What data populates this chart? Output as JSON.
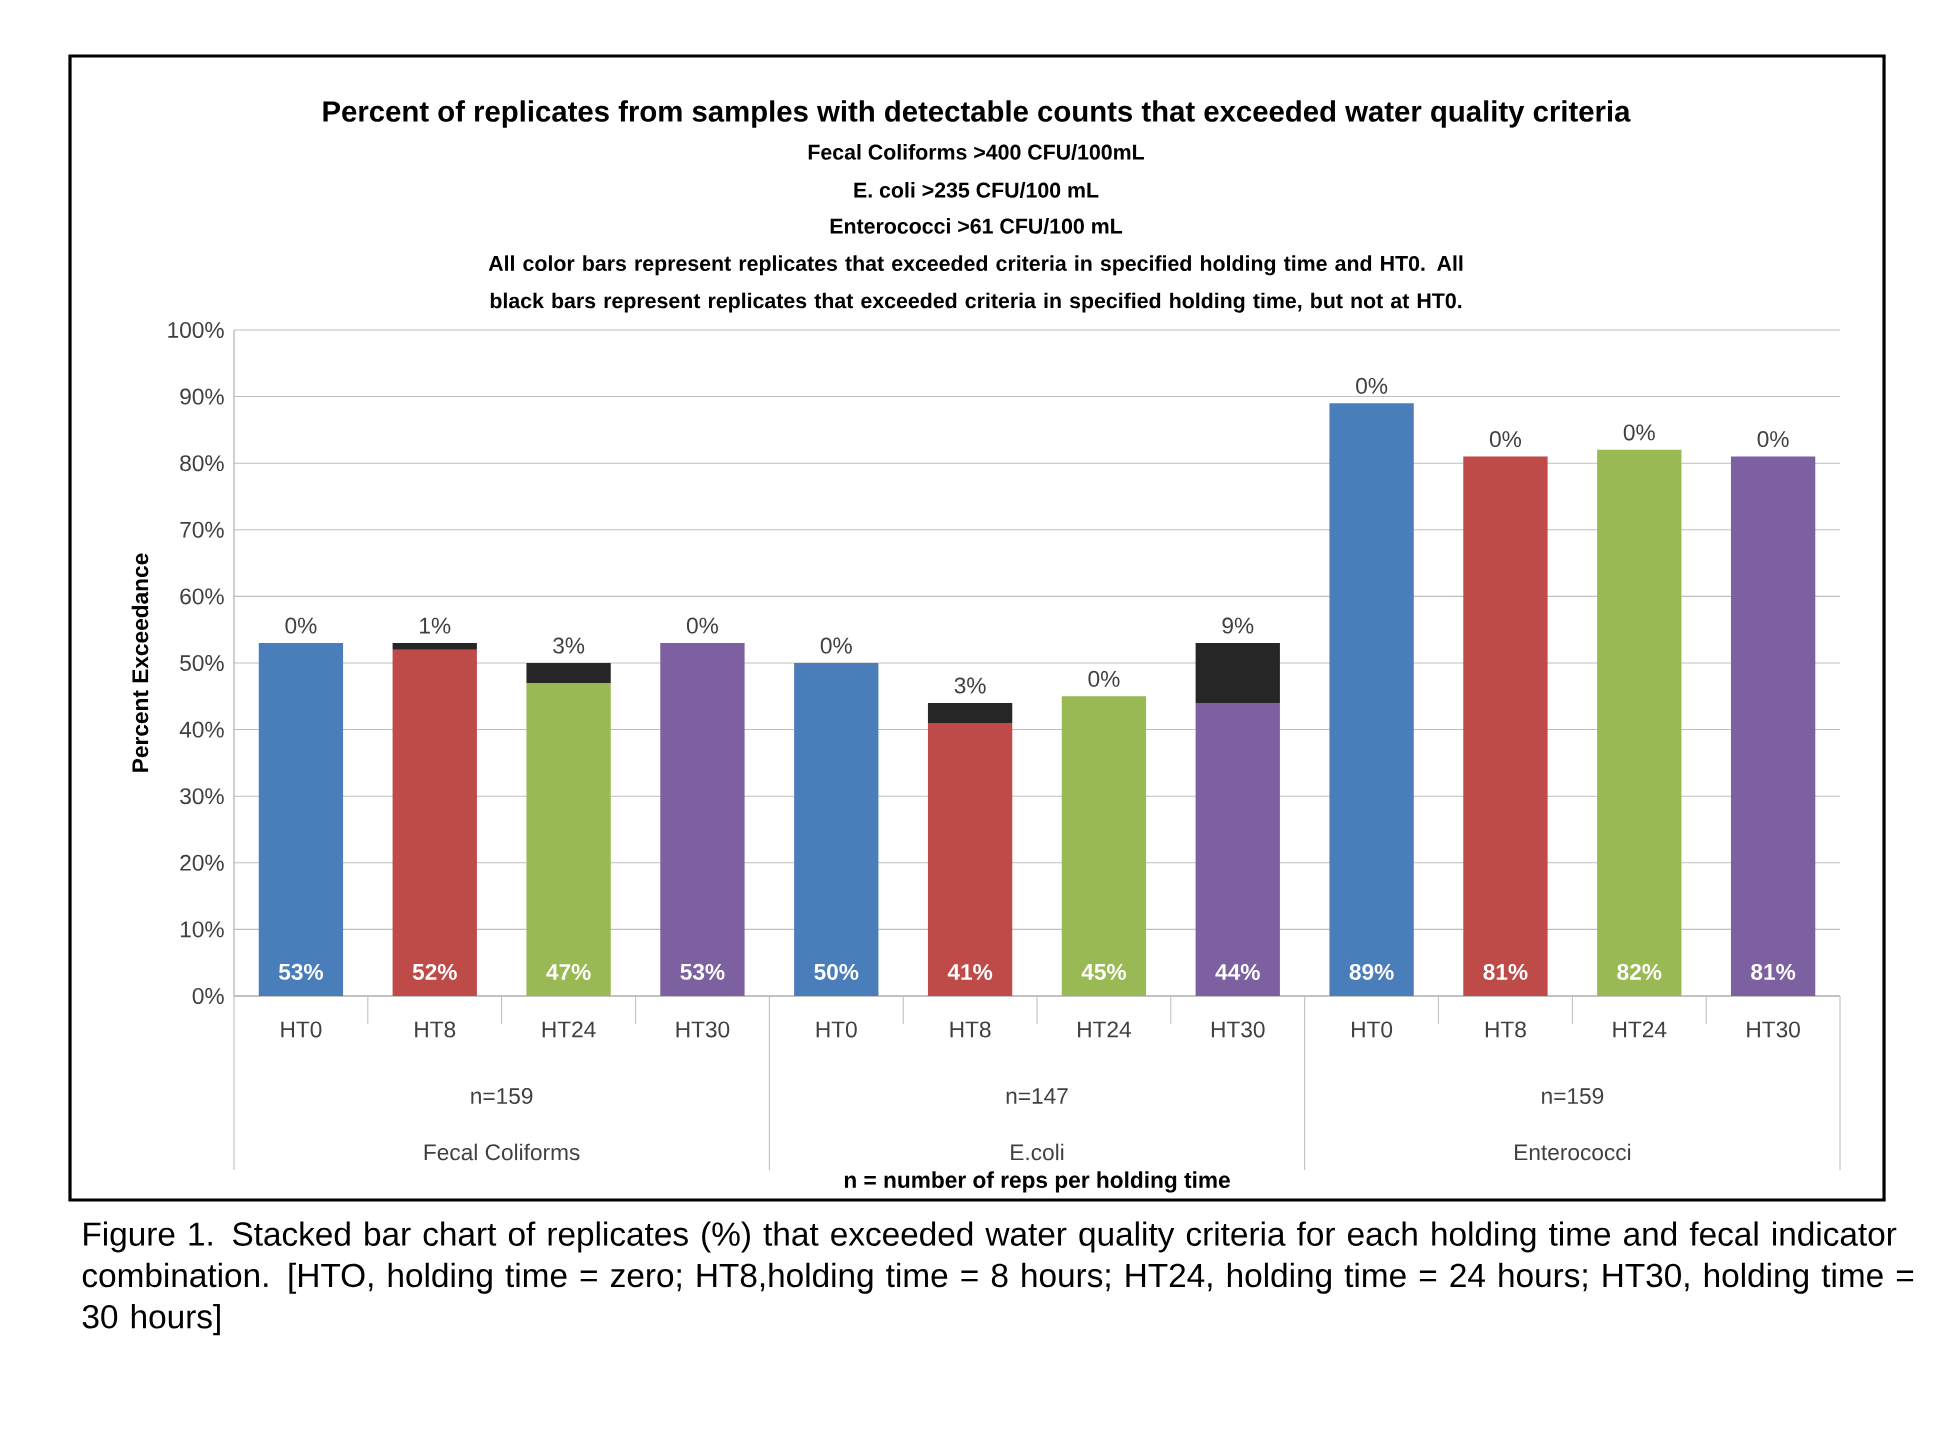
{
  "chart_data": {
    "type": "bar",
    "stacked": true,
    "title": "Percent of replicates from samples with detectable counts that exceeded water quality criteria",
    "subtitle": [
      "Fecal Coliforms >400 CFU/100mL",
      "E. coli >235 CFU/100 mL",
      "Enterococci >61 CFU/100 mL"
    ],
    "ylabel": "Percent Exceedance",
    "categories": [
      "HT0",
      "HT8",
      "HT24",
      "HT30",
      "HT0",
      "HT8",
      "HT24",
      "HT30",
      "HT0",
      "HT8",
      "HT24",
      "HT30"
    ],
    "series": [
      {
        "colors": [
          "#4a7ebb",
          "#be4b48",
          "#98b954",
          "#7d60a0",
          "#4a7ebb",
          "#be4b48",
          "#98b954",
          "#7d60a0",
          "#4a7ebb",
          "#be4b48",
          "#98b954",
          "#7d60a0"
        ],
        "values": [
          53,
          52,
          47,
          53,
          50,
          41,
          45,
          44,
          89,
          81,
          82,
          81
        ],
        "value_labels": [
          "53%",
          "52%",
          "47%",
          "53%",
          "50%",
          "41%",
          "45%",
          "44%",
          "89%",
          "81%",
          "82%",
          "81%"
        ]
      },
      {
        "color": "#262626",
        "values": [
          0,
          1,
          3,
          0,
          0,
          3,
          0,
          9,
          0,
          0,
          0,
          0
        ],
        "value_labels": [
          "0%",
          "1%",
          "3%",
          "0%",
          "0%",
          "3%",
          "0%",
          "9%",
          "0%",
          "0%",
          "0%",
          "0%"
        ]
      }
    ],
    "ylim": [
      0,
      100
    ],
    "yticks": [
      {
        "value": 0,
        "label": "0%"
      },
      {
        "value": 10,
        "label": "10%"
      },
      {
        "value": 20,
        "label": "20%"
      },
      {
        "value": 30,
        "label": "30%"
      },
      {
        "value": 40,
        "label": "40%"
      },
      {
        "value": 50,
        "label": "50%"
      },
      {
        "value": 60,
        "label": "60%"
      },
      {
        "value": 70,
        "label": "70%"
      },
      {
        "value": 80,
        "label": "80%"
      },
      {
        "value": 90,
        "label": "90%"
      },
      {
        "value": 100,
        "label": "100%"
      }
    ],
    "grid": "y",
    "annotations": [
      "All color bars represent replicates that exceeded criteria in specified holding time and HT0.  All black bars represent replicates that exceeded criteria in specified holding time, but not at HT0.",
      "n=159",
      "n=147",
      "n=159",
      "Fecal Coliforms",
      "E.coli",
      "Enterococci",
      "n = number of reps per holding time",
      "Figure 1.  Stacked bar chart of replicates (%) that exceeded water quality criteria for each holding time and fecal indicator combination. [HTO, holding time = zero; HT8,holding time = 8 hours; HT24, holding time = 24 hours; HT30, holding time = 30 hours]"
    ]
  }
}
